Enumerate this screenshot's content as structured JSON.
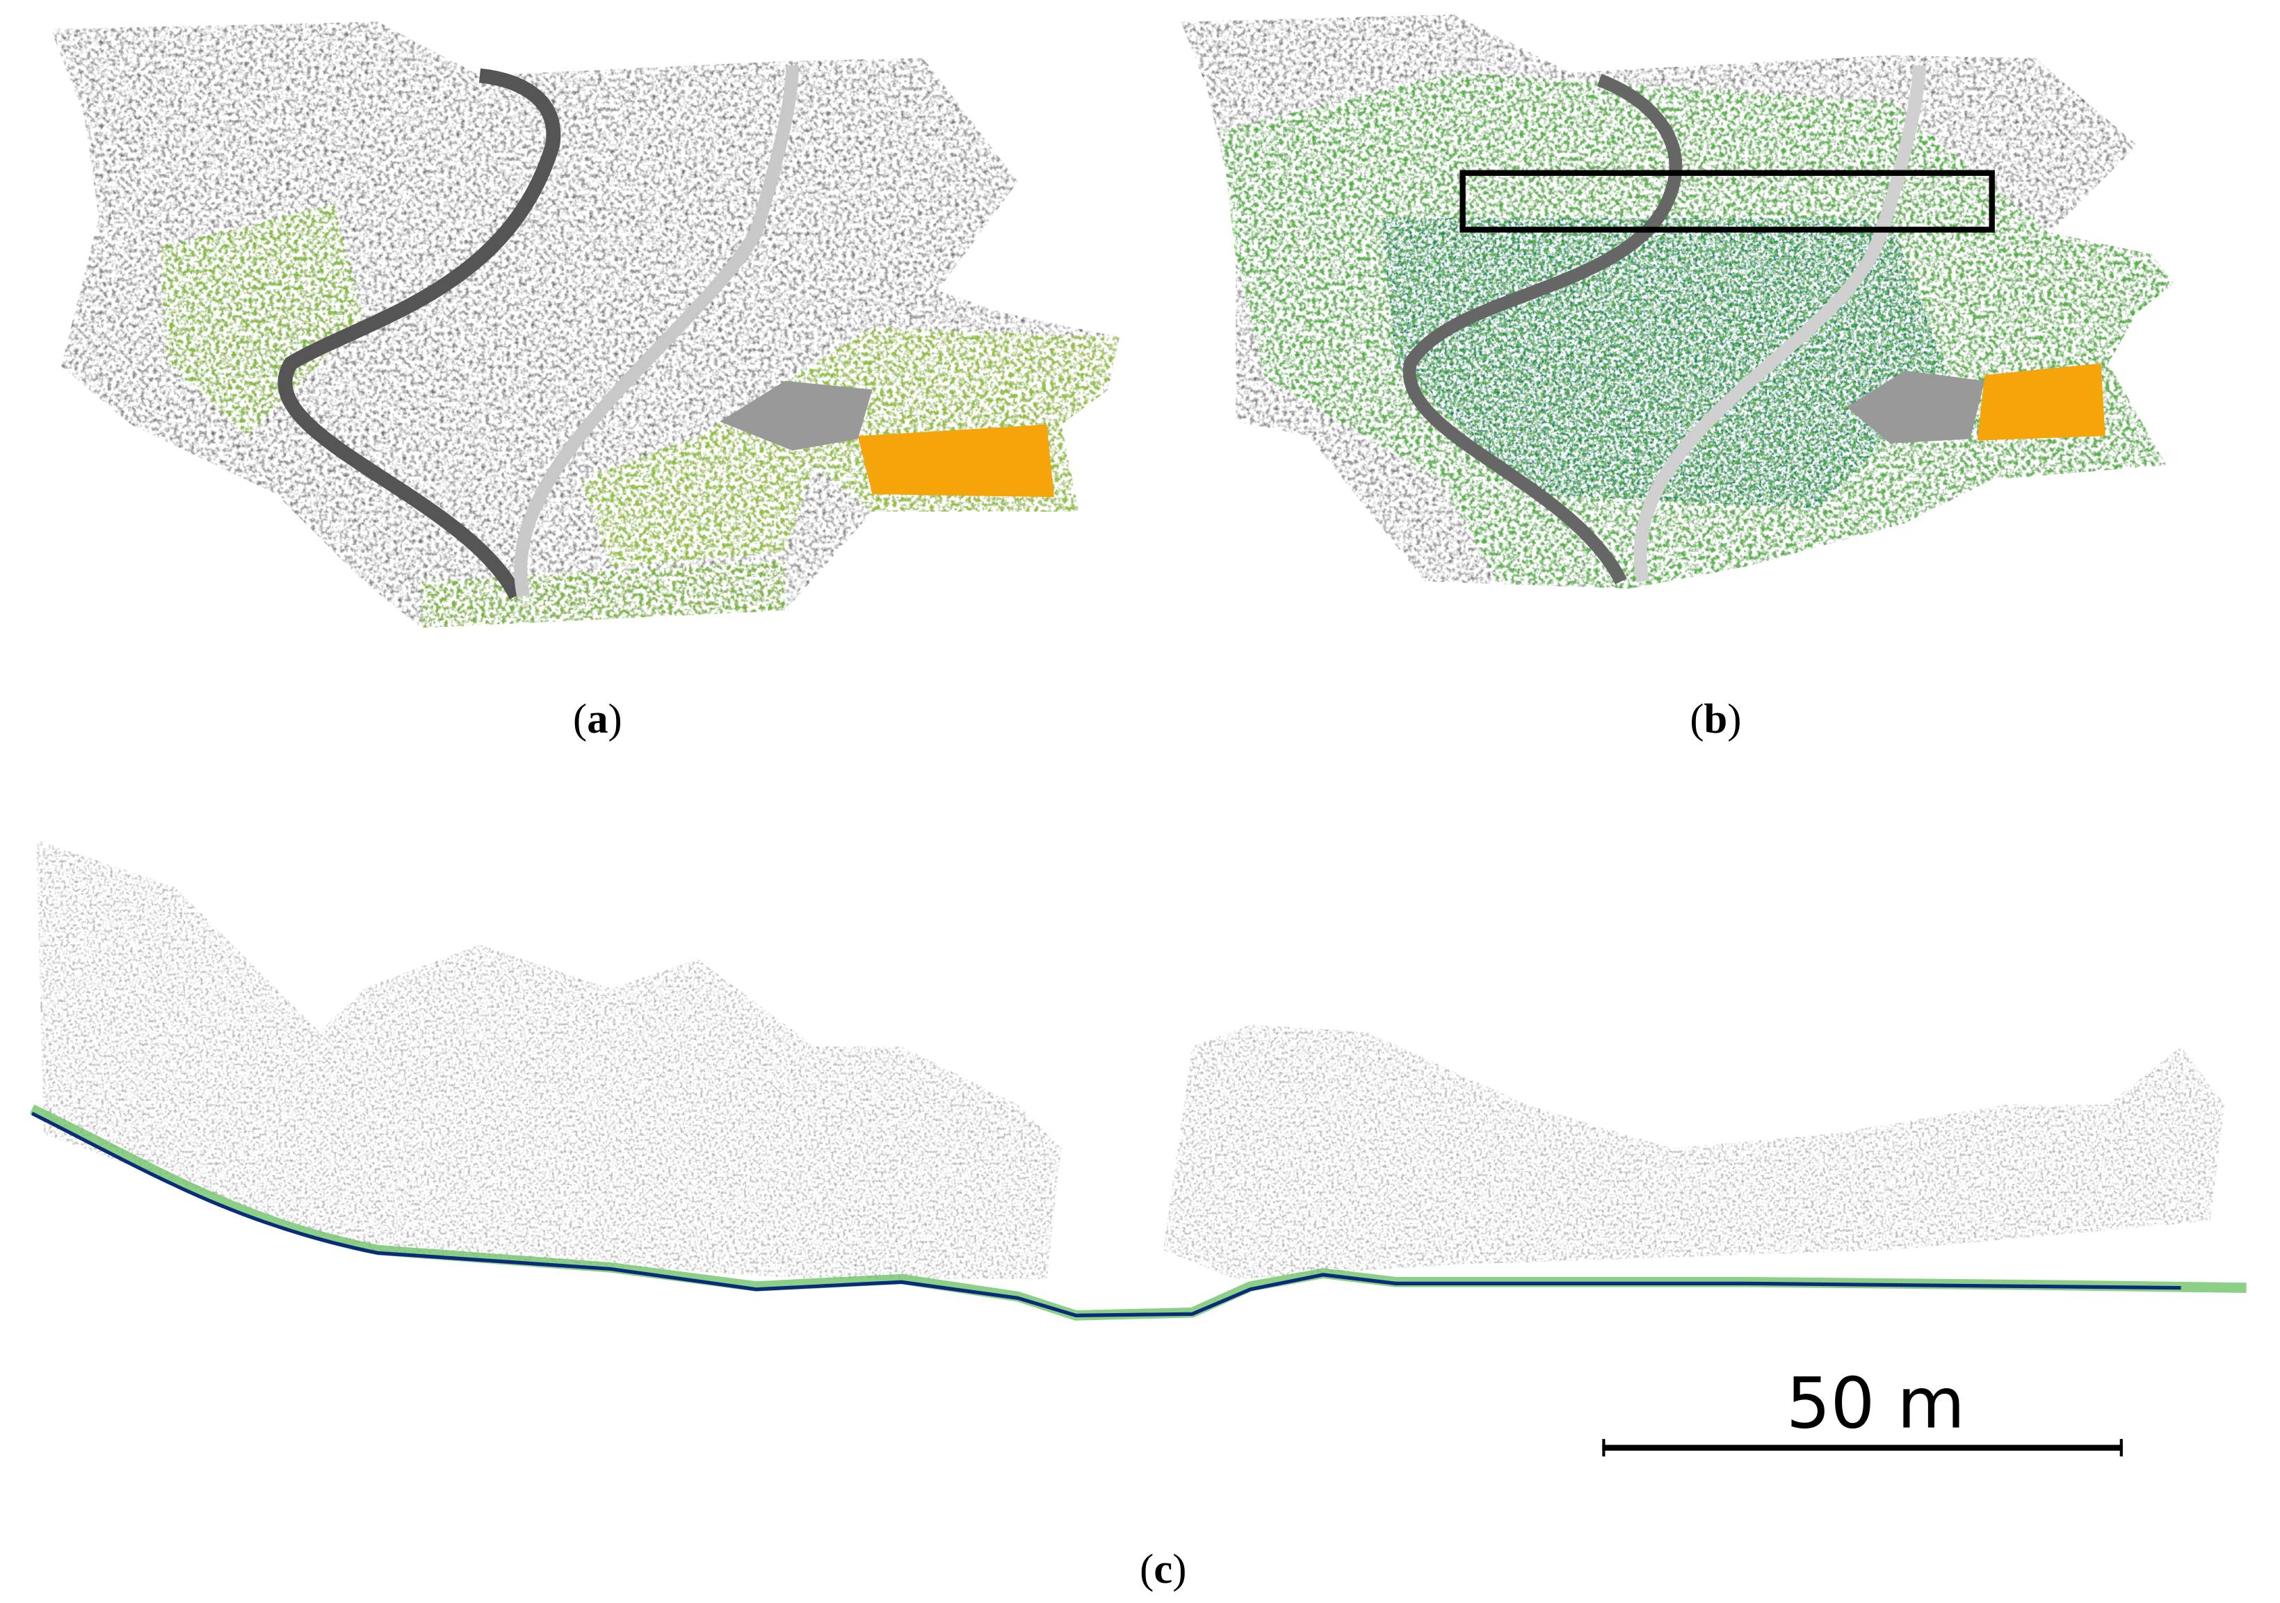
{
  "panels": [
    {
      "open": "(",
      "letter": "a",
      "close": ")"
    },
    {
      "open": "(",
      "letter": "b",
      "close": ")"
    },
    {
      "open": "(",
      "letter": "c",
      "close": ")"
    }
  ],
  "scale_bar": {
    "label": "50 m"
  }
}
